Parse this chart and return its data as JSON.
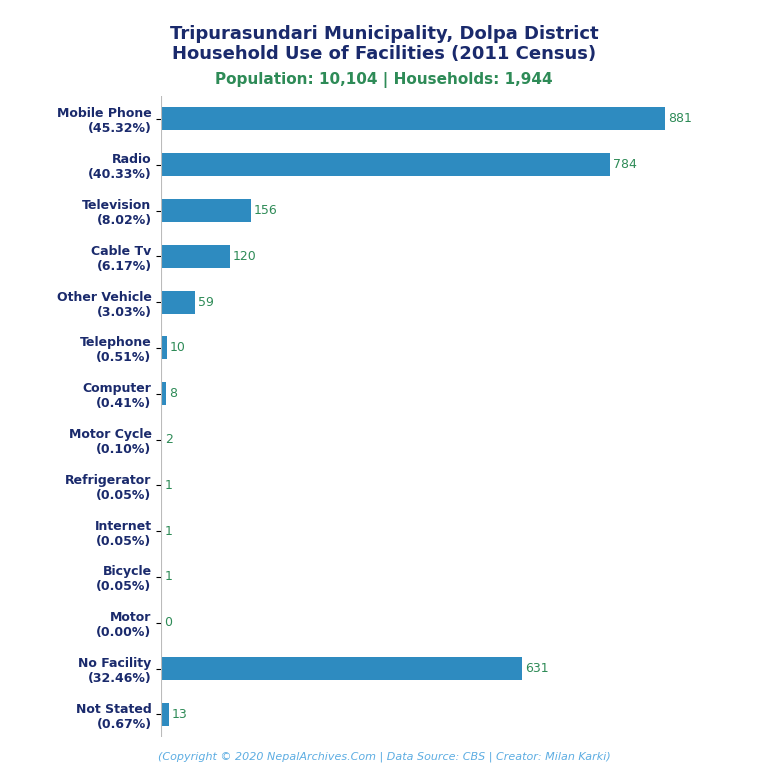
{
  "title_line1": "Tripurasundari Municipality, Dolpa District",
  "title_line2": "Household Use of Facilities (2011 Census)",
  "subtitle": "Population: 10,104 | Households: 1,944",
  "copyright": "(Copyright © 2020 NepalArchives.Com | Data Source: CBS | Creator: Milan Karki)",
  "categories": [
    "Mobile Phone\n(45.32%)",
    "Radio\n(40.33%)",
    "Television\n(8.02%)",
    "Cable Tv\n(6.17%)",
    "Other Vehicle\n(3.03%)",
    "Telephone\n(0.51%)",
    "Computer\n(0.41%)",
    "Motor Cycle\n(0.10%)",
    "Refrigerator\n(0.05%)",
    "Internet\n(0.05%)",
    "Bicycle\n(0.05%)",
    "Motor\n(0.00%)",
    "No Facility\n(32.46%)",
    "Not Stated\n(0.67%)"
  ],
  "values": [
    881,
    784,
    156,
    120,
    59,
    10,
    8,
    2,
    1,
    1,
    1,
    0,
    631,
    13
  ],
  "bar_color": "#2E8BC0",
  "value_color": "#2E8B57",
  "title_color": "#1a2a6c",
  "subtitle_color": "#2E8B57",
  "copyright_color": "#5DADE2",
  "background_color": "#ffffff",
  "xlim": [
    0,
    980
  ],
  "title_fontsize": 13,
  "subtitle_fontsize": 11,
  "label_fontsize": 9,
  "value_fontsize": 9,
  "copyright_fontsize": 8
}
